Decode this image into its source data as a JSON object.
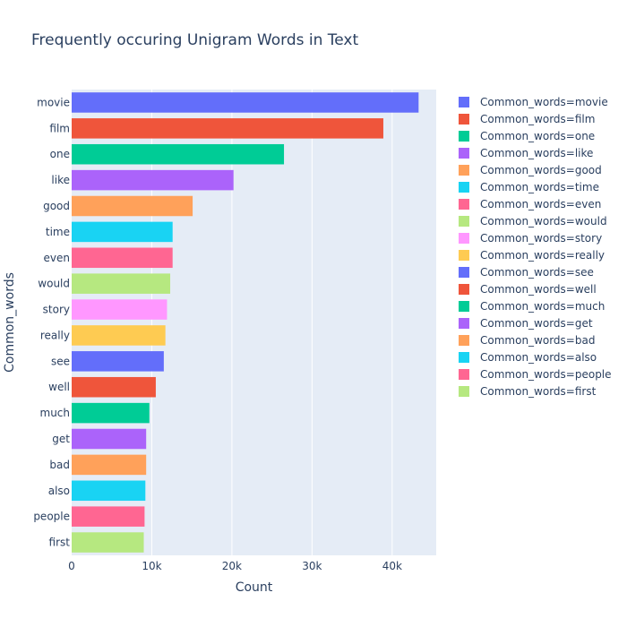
{
  "chart_data": {
    "type": "bar",
    "orientation": "horizontal",
    "title": "Frequently occuring Unigram Words in Text",
    "xlabel": "Count",
    "ylabel": "Common_words",
    "xlim": [
      0,
      45500
    ],
    "x_ticks": [
      0,
      10000,
      20000,
      30000,
      40000
    ],
    "x_tick_labels": [
      "0",
      "10k",
      "20k",
      "30k",
      "40k"
    ],
    "grid": true,
    "legend_position": "right",
    "categories": [
      "movie",
      "film",
      "one",
      "like",
      "good",
      "time",
      "even",
      "would",
      "story",
      "really",
      "see",
      "well",
      "much",
      "get",
      "bad",
      "also",
      "people",
      "first"
    ],
    "values": [
      43300,
      38900,
      26500,
      20200,
      15100,
      12600,
      12600,
      12300,
      11900,
      11700,
      11500,
      10500,
      9700,
      9300,
      9300,
      9200,
      9100,
      9000
    ],
    "colors": [
      "#636efa",
      "#EF553B",
      "#00cc96",
      "#ab63fa",
      "#FFA15A",
      "#19d3f3",
      "#FF6692",
      "#B6E880",
      "#FF97FF",
      "#FECB52",
      "#636efa",
      "#EF553B",
      "#00cc96",
      "#ab63fa",
      "#FFA15A",
      "#19d3f3",
      "#FF6692",
      "#B6E880"
    ],
    "legend": [
      "Common_words=movie",
      "Common_words=film",
      "Common_words=one",
      "Common_words=like",
      "Common_words=good",
      "Common_words=time",
      "Common_words=even",
      "Common_words=would",
      "Common_words=story",
      "Common_words=really",
      "Common_words=see",
      "Common_words=well",
      "Common_words=much",
      "Common_words=get",
      "Common_words=bad",
      "Common_words=also",
      "Common_words=people",
      "Common_words=first"
    ],
    "plot_background": "#e5ecf6",
    "grid_color": "#ffffff"
  }
}
